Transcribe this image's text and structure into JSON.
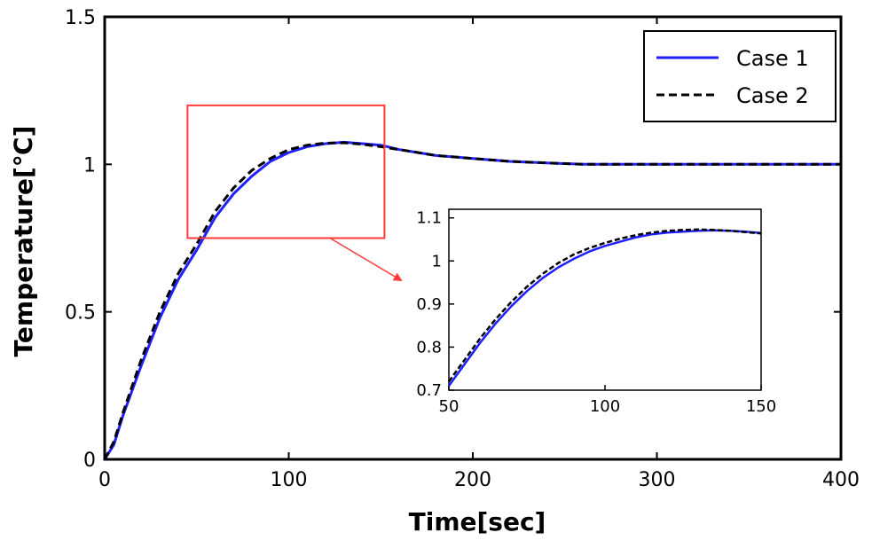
{
  "chart_data": {
    "type": "line",
    "xlabel": "Time[sec]",
    "ylabel": "Temperature[℃]",
    "xlim": [
      0,
      400
    ],
    "ylim": [
      0,
      1.5
    ],
    "xticks": [
      "0",
      "100",
      "200",
      "300",
      "400"
    ],
    "yticks": [
      "0",
      "0.5",
      "1",
      "1.5"
    ],
    "grid": false,
    "legend_position": "top-right",
    "series": [
      {
        "name": "Case 1",
        "color": "#1f1fff",
        "style": "solid",
        "x": [
          0,
          5,
          10,
          20,
          30,
          40,
          50,
          60,
          70,
          80,
          90,
          100,
          110,
          120,
          130,
          140,
          150,
          160,
          170,
          180,
          190,
          200,
          220,
          240,
          260,
          280,
          300,
          320,
          340,
          360,
          380,
          400
        ],
        "y": [
          0,
          0.05,
          0.15,
          0.32,
          0.48,
          0.61,
          0.71,
          0.82,
          0.9,
          0.96,
          1.01,
          1.04,
          1.06,
          1.07,
          1.075,
          1.07,
          1.065,
          1.05,
          1.04,
          1.03,
          1.025,
          1.02,
          1.01,
          1.005,
          1.0,
          1.0,
          1.0,
          1.0,
          1.0,
          1.0,
          1.0,
          1.0
        ]
      },
      {
        "name": "Case 2",
        "color": "#000000",
        "style": "dashed",
        "x": [
          0,
          5,
          10,
          20,
          30,
          40,
          50,
          60,
          70,
          80,
          90,
          100,
          110,
          120,
          130,
          140,
          150,
          160,
          170,
          180,
          190,
          200,
          220,
          240,
          260,
          280,
          300,
          320,
          340,
          360,
          380,
          400
        ],
        "y": [
          0,
          0.06,
          0.16,
          0.34,
          0.5,
          0.63,
          0.73,
          0.84,
          0.92,
          0.98,
          1.02,
          1.05,
          1.065,
          1.072,
          1.073,
          1.068,
          1.06,
          1.05,
          1.04,
          1.03,
          1.025,
          1.02,
          1.01,
          1.005,
          1.0,
          1.0,
          1.0,
          1.0,
          1.0,
          1.0,
          1.0,
          1.0
        ]
      }
    ],
    "zoom_box": {
      "xlim": [
        45,
        152
      ],
      "ylim": [
        0.75,
        1.2
      ],
      "color": "#ff3b3b"
    },
    "inset": {
      "xlim": [
        50,
        150
      ],
      "ylim": [
        0.7,
        1.12
      ],
      "xticks": [
        "50",
        "100",
        "150"
      ],
      "yticks": [
        "0.7",
        "0.8",
        "0.9",
        "1",
        "1.1"
      ],
      "series": [
        {
          "name": "Case 1",
          "x": [
            50,
            55,
            60,
            65,
            70,
            75,
            80,
            85,
            90,
            95,
            100,
            105,
            110,
            115,
            120,
            125,
            130,
            135,
            140,
            145,
            150
          ],
          "y": [
            0.71,
            0.76,
            0.81,
            0.855,
            0.895,
            0.93,
            0.96,
            0.985,
            1.005,
            1.022,
            1.035,
            1.045,
            1.055,
            1.062,
            1.066,
            1.068,
            1.07,
            1.071,
            1.07,
            1.068,
            1.065
          ]
        },
        {
          "name": "Case 2",
          "x": [
            50,
            55,
            60,
            65,
            70,
            75,
            80,
            85,
            90,
            95,
            100,
            105,
            110,
            115,
            120,
            125,
            130,
            135,
            140,
            145,
            150
          ],
          "y": [
            0.72,
            0.77,
            0.82,
            0.865,
            0.905,
            0.94,
            0.97,
            0.995,
            1.015,
            1.03,
            1.042,
            1.052,
            1.06,
            1.066,
            1.07,
            1.072,
            1.073,
            1.072,
            1.07,
            1.067,
            1.064
          ]
        }
      ]
    }
  }
}
